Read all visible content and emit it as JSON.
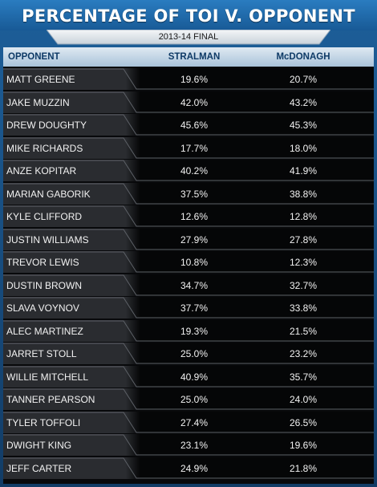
{
  "title": "PERCENTAGE OF TOI V. OPPONENT",
  "subtitle": "2013-14 FINAL",
  "table": {
    "headers": [
      "OPPONENT",
      "STRALMAN",
      "McDONAGH"
    ],
    "rows": [
      [
        "MATT GREENE",
        "19.6%",
        "20.7%"
      ],
      [
        "JAKE MUZZIN",
        "42.0%",
        "43.2%"
      ],
      [
        "DREW DOUGHTY",
        "45.6%",
        "45.3%"
      ],
      [
        "MIKE RICHARDS",
        "17.7%",
        "18.0%"
      ],
      [
        "ANZE KOPITAR",
        "40.2%",
        "41.9%"
      ],
      [
        "MARIAN GABORIK",
        "37.5%",
        "38.8%"
      ],
      [
        "KYLE CLIFFORD",
        "12.6%",
        "12.8%"
      ],
      [
        "JUSTIN WILLIAMS",
        "27.9%",
        "27.8%"
      ],
      [
        "TREVOR LEWIS",
        "10.8%",
        "12.3%"
      ],
      [
        "DUSTIN BROWN",
        "34.7%",
        "32.7%"
      ],
      [
        "SLAVA VOYNOV",
        "37.7%",
        "33.8%"
      ],
      [
        "ALEC MARTINEZ",
        "19.3%",
        "21.5%"
      ],
      [
        "JARRET STOLL",
        "25.0%",
        "23.2%"
      ],
      [
        "WILLIE MITCHELL",
        "40.9%",
        "35.7%"
      ],
      [
        "TANNER PEARSON",
        "25.0%",
        "24.0%"
      ],
      [
        "TYLER TOFFOLI",
        "27.4%",
        "26.5%"
      ],
      [
        "DWIGHT KING",
        "23.1%",
        "19.6%"
      ],
      [
        "JEFF CARTER",
        "24.9%",
        "21.8%"
      ]
    ]
  },
  "colors": {
    "frame": "#1d5f9a",
    "header_text": "#0e3a66",
    "row_left": "#2a2c30",
    "row_right": "#050607"
  }
}
